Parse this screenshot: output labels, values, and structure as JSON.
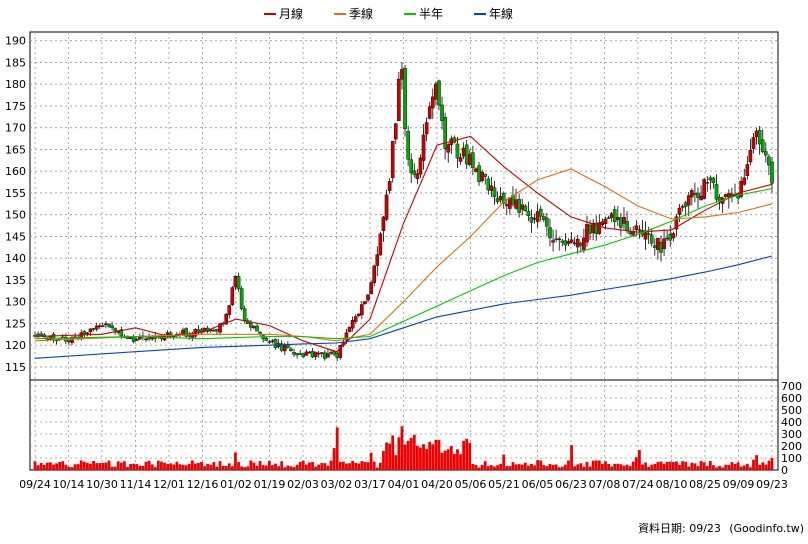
{
  "chart_data": [
    {
      "type": "candlestick",
      "legend": {
        "placement": "top-center",
        "items": [
          {
            "label": "月線",
            "color": "#cc0000"
          },
          {
            "label": "季線",
            "color": "#e07010"
          },
          {
            "label": "半年",
            "color": "#00cc00"
          },
          {
            "label": "年線",
            "color": "#0044cc"
          }
        ]
      },
      "ylim": [
        112,
        192
      ],
      "yticks": [
        115,
        120,
        125,
        130,
        135,
        140,
        145,
        150,
        155,
        160,
        165,
        170,
        175,
        180,
        185,
        190
      ],
      "grid": true,
      "colors": {
        "up": "#cc0000",
        "down": "#00aa00"
      },
      "keypoints": [
        {
          "x": "09/24",
          "close": 122.5
        },
        {
          "x": "10/14",
          "close": 120.8
        },
        {
          "x": "10/30",
          "close": 125.0
        },
        {
          "x": "11/14",
          "close": 121.0
        },
        {
          "x": "12/01",
          "close": 122.5
        },
        {
          "x": "12/16",
          "close": 123.0
        },
        {
          "x": "12/27",
          "close": 124.5
        },
        {
          "x": "01/02",
          "close": 136.0
        },
        {
          "x": "01/06",
          "close": 126.0
        },
        {
          "x": "01/19",
          "close": 120.5
        },
        {
          "x": "02/03",
          "close": 118.0
        },
        {
          "x": "03/02",
          "close": 117.5
        },
        {
          "x": "03/17",
          "close": 133.0
        },
        {
          "x": "03/25",
          "close": 155.0
        },
        {
          "x": "03/31",
          "close": 185.0
        },
        {
          "x": "04/03",
          "close": 163.0
        },
        {
          "x": "04/08",
          "close": 158.0
        },
        {
          "x": "04/16",
          "close": 175.0
        },
        {
          "x": "04/20",
          "close": 180.0
        },
        {
          "x": "04/24",
          "close": 167.0
        },
        {
          "x": "05/06",
          "close": 162.0
        },
        {
          "x": "05/15",
          "close": 155.0
        },
        {
          "x": "05/21",
          "close": 154.0
        },
        {
          "x": "06/05",
          "close": 149.0
        },
        {
          "x": "06/17",
          "close": 144.0
        },
        {
          "x": "06/23",
          "close": 143.0
        },
        {
          "x": "07/08",
          "close": 149.0
        },
        {
          "x": "07/14",
          "close": 148.0
        },
        {
          "x": "07/24",
          "close": 146.0
        },
        {
          "x": "08/04",
          "close": 143.0
        },
        {
          "x": "08/10",
          "close": 145.0
        },
        {
          "x": "08/17",
          "close": 154.0
        },
        {
          "x": "08/25",
          "close": 157.0
        },
        {
          "x": "09/03",
          "close": 154.0
        },
        {
          "x": "09/09",
          "close": 155.0
        },
        {
          "x": "09/16",
          "close": 171.0
        },
        {
          "x": "09/23",
          "close": 158.0
        }
      ],
      "moving_averages": {
        "月線": [
          {
            "x": "09/24",
            "y": 122.0
          },
          {
            "x": "10/30",
            "y": 122.5
          },
          {
            "x": "11/14",
            "y": 124.0
          },
          {
            "x": "12/01",
            "y": 122.0
          },
          {
            "x": "12/16",
            "y": 123.0
          },
          {
            "x": "01/02",
            "y": 126.0
          },
          {
            "x": "01/19",
            "y": 124.5
          },
          {
            "x": "02/03",
            "y": 121.0
          },
          {
            "x": "03/02",
            "y": 118.5
          },
          {
            "x": "03/17",
            "y": 126.0
          },
          {
            "x": "04/01",
            "y": 148.0
          },
          {
            "x": "04/20",
            "y": 166.0
          },
          {
            "x": "05/06",
            "y": 168.0
          },
          {
            "x": "05/21",
            "y": 161.0
          },
          {
            "x": "06/05",
            "y": 155.0
          },
          {
            "x": "06/23",
            "y": 149.5
          },
          {
            "x": "07/08",
            "y": 147.0
          },
          {
            "x": "07/24",
            "y": 146.0
          },
          {
            "x": "08/10",
            "y": 146.5
          },
          {
            "x": "08/25",
            "y": 151.0
          },
          {
            "x": "09/09",
            "y": 155.0
          },
          {
            "x": "09/23",
            "y": 157.0
          }
        ],
        "季線": [
          {
            "x": "09/24",
            "y": 121.0
          },
          {
            "x": "11/14",
            "y": 122.0
          },
          {
            "x": "12/16",
            "y": 122.5
          },
          {
            "x": "01/19",
            "y": 122.5
          },
          {
            "x": "02/03",
            "y": 122.0
          },
          {
            "x": "03/02",
            "y": 121.0
          },
          {
            "x": "03/17",
            "y": 122.5
          },
          {
            "x": "04/01",
            "y": 130.0
          },
          {
            "x": "04/20",
            "y": 138.0
          },
          {
            "x": "05/06",
            "y": 145.0
          },
          {
            "x": "05/21",
            "y": 153.0
          },
          {
            "x": "06/05",
            "y": 158.0
          },
          {
            "x": "06/23",
            "y": 160.5
          },
          {
            "x": "07/08",
            "y": 156.5
          },
          {
            "x": "07/24",
            "y": 152.0
          },
          {
            "x": "08/10",
            "y": 149.0
          },
          {
            "x": "08/25",
            "y": 149.5
          },
          {
            "x": "09/09",
            "y": 150.5
          },
          {
            "x": "09/23",
            "y": 152.5
          }
        ],
        "半年": [
          {
            "x": "09/24",
            "y": 121.5
          },
          {
            "x": "11/14",
            "y": 122.0
          },
          {
            "x": "12/16",
            "y": 121.5
          },
          {
            "x": "01/19",
            "y": 122.0
          },
          {
            "x": "02/03",
            "y": 122.0
          },
          {
            "x": "03/02",
            "y": 121.5
          },
          {
            "x": "03/17",
            "y": 122.0
          },
          {
            "x": "04/01",
            "y": 125.5
          },
          {
            "x": "04/20",
            "y": 129.0
          },
          {
            "x": "05/06",
            "y": 132.5
          },
          {
            "x": "05/21",
            "y": 136.0
          },
          {
            "x": "06/05",
            "y": 139.0
          },
          {
            "x": "06/23",
            "y": 141.0
          },
          {
            "x": "07/08",
            "y": 143.0
          },
          {
            "x": "07/24",
            "y": 145.5
          },
          {
            "x": "08/10",
            "y": 148.5
          },
          {
            "x": "08/25",
            "y": 152.0
          },
          {
            "x": "09/09",
            "y": 154.5
          },
          {
            "x": "09/23",
            "y": 156.0
          }
        ],
        "年線": [
          {
            "x": "09/24",
            "y": 117.0
          },
          {
            "x": "11/14",
            "y": 118.5
          },
          {
            "x": "12/16",
            "y": 119.5
          },
          {
            "x": "01/19",
            "y": 120.0
          },
          {
            "x": "02/03",
            "y": 120.3
          },
          {
            "x": "03/02",
            "y": 120.5
          },
          {
            "x": "03/17",
            "y": 121.5
          },
          {
            "x": "04/01",
            "y": 124.0
          },
          {
            "x": "04/20",
            "y": 126.5
          },
          {
            "x": "05/06",
            "y": 128.0
          },
          {
            "x": "05/21",
            "y": 129.5
          },
          {
            "x": "06/05",
            "y": 130.5
          },
          {
            "x": "06/23",
            "y": 131.5
          },
          {
            "x": "07/08",
            "y": 132.8
          },
          {
            "x": "07/24",
            "y": 134.0
          },
          {
            "x": "08/10",
            "y": 135.3
          },
          {
            "x": "08/25",
            "y": 136.8
          },
          {
            "x": "09/09",
            "y": 138.5
          },
          {
            "x": "09/23",
            "y": 140.5
          }
        ]
      }
    },
    {
      "type": "bar",
      "ylim": [
        0,
        750
      ],
      "yticks": [
        0,
        100,
        200,
        300,
        400,
        500,
        600,
        700
      ],
      "color": "#ee0000",
      "grid": true,
      "spikes": [
        {
          "x": "09/24",
          "value": 50
        },
        {
          "x": "10/14",
          "value": 30
        },
        {
          "x": "10/30",
          "value": 60
        },
        {
          "x": "11/14",
          "value": 40
        },
        {
          "x": "12/01",
          "value": 45
        },
        {
          "x": "12/16",
          "value": 55
        },
        {
          "x": "01/02",
          "value": 240
        },
        {
          "x": "01/19",
          "value": 80
        },
        {
          "x": "02/03",
          "value": 70
        },
        {
          "x": "03/02",
          "value": 515
        },
        {
          "x": "03/17",
          "value": 200
        },
        {
          "x": "03/25",
          "value": 300
        },
        {
          "x": "03/31",
          "value": 710
        },
        {
          "x": "04/03",
          "value": 420
        },
        {
          "x": "04/08",
          "value": 360
        },
        {
          "x": "04/20",
          "value": 250
        },
        {
          "x": "05/06",
          "value": 130
        },
        {
          "x": "05/21",
          "value": 160
        },
        {
          "x": "06/05",
          "value": 120
        },
        {
          "x": "06/23",
          "value": 250
        },
        {
          "x": "07/08",
          "value": 120
        },
        {
          "x": "07/24",
          "value": 290
        },
        {
          "x": "08/10",
          "value": 110
        },
        {
          "x": "08/25",
          "value": 80
        },
        {
          "x": "09/09",
          "value": 70
        },
        {
          "x": "09/16",
          "value": 200
        },
        {
          "x": "09/23",
          "value": 120
        }
      ]
    }
  ],
  "x_axis": {
    "ticks": [
      "09/24",
      "10/14",
      "10/30",
      "11/14",
      "12/01",
      "12/16",
      "01/02",
      "01/19",
      "02/03",
      "03/02",
      "03/17",
      "04/01",
      "04/20",
      "05/06",
      "05/21",
      "06/05",
      "06/23",
      "07/08",
      "07/24",
      "08/10",
      "08/25",
      "09/09",
      "09/23"
    ]
  },
  "footer": {
    "data_date": "資料日期: 09/23",
    "source": "(Goodinfo.tw)"
  }
}
